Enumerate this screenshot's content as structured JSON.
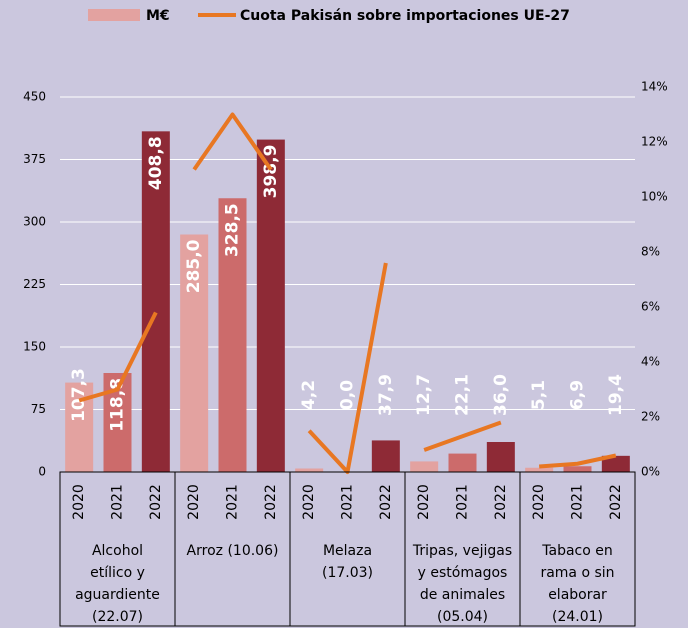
{
  "chart_data": {
    "type": "bar-line",
    "categories": [
      [
        "Alcohol",
        "etílico y",
        "aguardiente",
        "(22.07)"
      ],
      [
        "Arroz (10.06)"
      ],
      [
        "Melaza",
        "(17.03)"
      ],
      [
        "Tripas, vejigas",
        "y estómagos",
        "de animales",
        "(05.04)"
      ],
      [
        "Tabaco en",
        "rama o sin",
        "elaborar",
        "(24.01)"
      ]
    ],
    "years": [
      "2020",
      "2021",
      "2022"
    ],
    "series": [
      {
        "name": "M€",
        "color": "#e3a2a0",
        "colors": [
          "#e3a2a0",
          "#cc6b6b",
          "#8e2a36"
        ],
        "values": [
          [
            107.3,
            118.8,
            408.8
          ],
          [
            285.0,
            328.5,
            398.9
          ],
          [
            4.2,
            0.0,
            37.9
          ],
          [
            12.7,
            22.1,
            36.0
          ],
          [
            5.1,
            6.9,
            19.4
          ]
        ],
        "value_labels": [
          [
            "107,3",
            "118,8",
            "408,8"
          ],
          [
            "285,0",
            "328,5",
            "398,9"
          ],
          [
            "4,2",
            "0,0",
            "37,9"
          ],
          [
            "12,7",
            "22,1",
            "36,0"
          ],
          [
            "5,1",
            "6,9",
            "19,4"
          ]
        ]
      },
      {
        "name": "Cuota Pakisán sobre importaciones UE-27",
        "color": "#e87722",
        "axis": "y2",
        "values": [
          [
            2.6,
            3.0,
            5.8
          ],
          [
            11.0,
            13.0,
            11.0
          ],
          [
            1.5,
            0.0,
            7.6
          ],
          [
            0.8,
            1.3,
            1.8
          ],
          [
            0.2,
            0.3,
            0.6
          ]
        ]
      }
    ],
    "ylim": [
      0,
      462
    ],
    "yticks": [
      0,
      75,
      150,
      225,
      300,
      375,
      450
    ],
    "y2lim": [
      0,
      14
    ],
    "y2ticks": [
      {
        "value": 0,
        "label": "0%"
      },
      {
        "value": 2,
        "label": "2%"
      },
      {
        "value": 4,
        "label": "4%"
      },
      {
        "value": 6,
        "label": "6%"
      },
      {
        "value": 8,
        "label": "8%"
      },
      {
        "value": 10,
        "label": "10%"
      },
      {
        "value": 12,
        "label": "12%"
      },
      {
        "value": 14,
        "label": "14%"
      }
    ],
    "grid": true
  }
}
